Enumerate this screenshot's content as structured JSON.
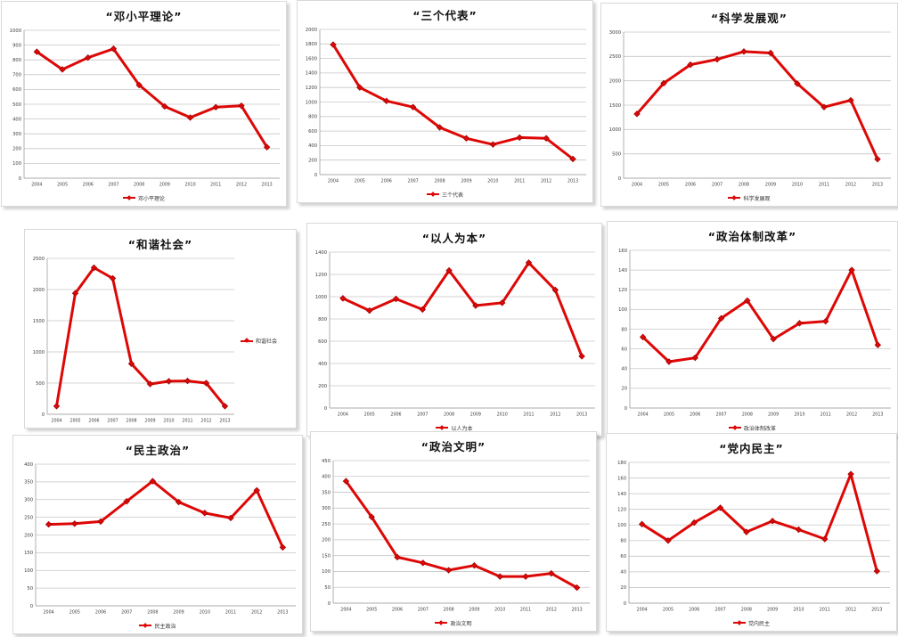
{
  "style": {
    "line_color": "#dd0806",
    "marker_edge_color": "#9a0000",
    "grid_color": "#c6c6c6",
    "axis_color": "#9e9e9e",
    "tick_text_color": "#3c3c3c",
    "title_color": "#111111",
    "panel_border_color": "#d9d9d9"
  },
  "chart_data": [
    {
      "type": "line",
      "title": "“邓小平理论”",
      "categories": [
        "2004",
        "2005",
        "2006",
        "2007",
        "2008",
        "2009",
        "2010",
        "2011",
        "2012",
        "2013"
      ],
      "series": [
        {
          "name": "邓小平理论",
          "values": [
            855,
            735,
            815,
            875,
            630,
            485,
            410,
            480,
            490,
            210
          ]
        }
      ],
      "ylim": [
        0,
        1000
      ],
      "ystep": 100,
      "grid": true,
      "legend_position": "bottom"
    },
    {
      "type": "line",
      "title": "“三个代表”",
      "categories": [
        "2004",
        "2005",
        "2006",
        "2007",
        "2008",
        "2009",
        "2010",
        "2011",
        "2012",
        "2013"
      ],
      "series": [
        {
          "name": "三个代表",
          "values": [
            1790,
            1200,
            1015,
            930,
            650,
            500,
            415,
            510,
            500,
            215
          ]
        }
      ],
      "ylim": [
        0,
        2000
      ],
      "ystep": 200,
      "grid": true,
      "legend_position": "bottom"
    },
    {
      "type": "line",
      "title": "“科学发展观”",
      "categories": [
        "2004",
        "2005",
        "2006",
        "2007",
        "2008",
        "2009",
        "2010",
        "2011",
        "2012",
        "2013"
      ],
      "series": [
        {
          "name": "科学发展观",
          "values": [
            1320,
            1950,
            2330,
            2440,
            2600,
            2570,
            1940,
            1460,
            1600,
            390
          ]
        }
      ],
      "ylim": [
        0,
        3000
      ],
      "ystep": 500,
      "grid": true,
      "legend_position": "bottom"
    },
    {
      "type": "line",
      "title": "“和谐社会”",
      "categories": [
        "2004",
        "2005",
        "2006",
        "2007",
        "2008",
        "2009",
        "2010",
        "2011",
        "2012",
        "2013"
      ],
      "series": [
        {
          "name": "和谐社会",
          "values": [
            130,
            1940,
            2350,
            2180,
            810,
            485,
            530,
            535,
            500,
            130
          ]
        }
      ],
      "ylim": [
        0,
        2500
      ],
      "ystep": 500,
      "grid": true,
      "legend_position": "right"
    },
    {
      "type": "line",
      "title": "“以人为本”",
      "categories": [
        "2004",
        "2005",
        "2006",
        "2007",
        "2008",
        "2009",
        "2010",
        "2011",
        "2012",
        "2013"
      ],
      "series": [
        {
          "name": "以人为本",
          "values": [
            985,
            875,
            980,
            885,
            1235,
            920,
            945,
            1305,
            1060,
            465
          ]
        }
      ],
      "ylim": [
        0,
        1400
      ],
      "ystep": 200,
      "grid": true,
      "legend_position": "bottom"
    },
    {
      "type": "line",
      "title": "“政治体制改革”",
      "categories": [
        "2004",
        "2005",
        "2006",
        "2007",
        "2008",
        "2009",
        "2010",
        "2011",
        "2012",
        "2013"
      ],
      "series": [
        {
          "name": "政治体制改革",
          "values": [
            72,
            47,
            51,
            91,
            109,
            70,
            86,
            88,
            140,
            64
          ]
        }
      ],
      "ylim": [
        0,
        160
      ],
      "ystep": 20,
      "grid": true,
      "legend_position": "bottom"
    },
    {
      "type": "line",
      "title": "“民主政治”",
      "categories": [
        "2004",
        "2005",
        "2006",
        "2007",
        "2008",
        "2009",
        "2010",
        "2011",
        "2012",
        "2013"
      ],
      "series": [
        {
          "name": "民主政治",
          "values": [
            230,
            232,
            238,
            295,
            352,
            293,
            262,
            248,
            326,
            165
          ]
        }
      ],
      "ylim": [
        0,
        400
      ],
      "ystep": 50,
      "grid": true,
      "legend_position": "bottom"
    },
    {
      "type": "line",
      "title": "“政治文明”",
      "categories": [
        "2004",
        "2005",
        "2006",
        "2007",
        "2008",
        "2009",
        "2010",
        "2011",
        "2012",
        "2013"
      ],
      "series": [
        {
          "name": "政治文明",
          "values": [
            385,
            272,
            145,
            127,
            104,
            119,
            84,
            84,
            94,
            49
          ]
        }
      ],
      "ylim": [
        0,
        450
      ],
      "ystep": 50,
      "grid": true,
      "legend_position": "bottom"
    },
    {
      "type": "line",
      "title": "“党内民主”",
      "categories": [
        "2004",
        "2005",
        "2006",
        "2007",
        "2008",
        "2009",
        "2010",
        "2011",
        "2012",
        "2013"
      ],
      "series": [
        {
          "name": "党内民主",
          "values": [
            101,
            80,
            103,
            122,
            91,
            105,
            94,
            82,
            165,
            41
          ]
        }
      ],
      "ylim": [
        0,
        180
      ],
      "ystep": 20,
      "grid": true,
      "legend_position": "bottom"
    }
  ]
}
